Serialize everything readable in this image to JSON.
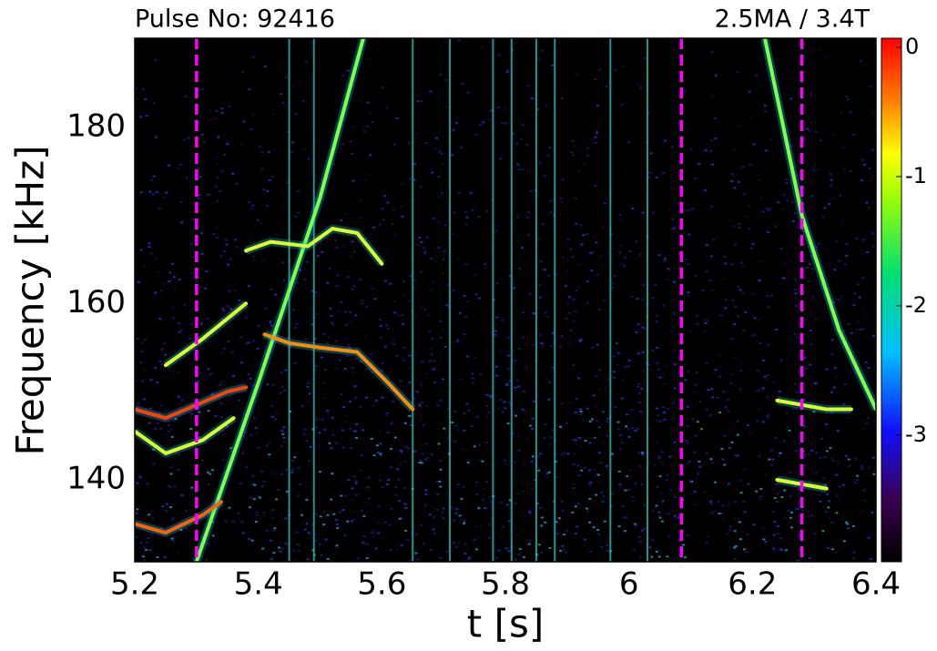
{
  "chart_data": {
    "type": "heatmap",
    "title": "Pulse No: 92416",
    "subtitle": "2.5MA / 3.4T",
    "x_label": "t [s]",
    "y_label": "Frequency [kHz]",
    "xlim": [
      5.2,
      6.4
    ],
    "xticks": [
      5.2,
      5.4,
      5.6,
      5.8,
      6.0,
      6.2,
      6.4
    ],
    "ylim": [
      130.7,
      190.1
    ],
    "yticks": [
      140,
      160,
      180
    ],
    "clim": [
      -3.98,
      0.07
    ],
    "cticks": [
      0,
      -1,
      -2,
      -3
    ],
    "vlines": [
      5.3,
      6.085,
      6.28
    ],
    "vline_color": "#ff00ff",
    "bursts": [
      5.45,
      5.49,
      5.65,
      5.71,
      5.78,
      5.81,
      5.85,
      5.88,
      5.97,
      6.03
    ],
    "burst_color": "#30c8c0",
    "series": [
      {
        "color": "#7fff40",
        "x": [
          5.3,
          5.4,
          5.5,
          5.57
        ],
        "values": [
          130.7,
          151,
          172,
          190.1
        ]
      },
      {
        "color": "#7fff40",
        "x": [
          6.22,
          6.28,
          6.34,
          6.4
        ],
        "values": [
          190.1,
          170,
          157,
          148
        ]
      },
      {
        "color": "#e0ff20",
        "x": [
          5.38,
          5.42,
          5.48,
          5.52,
          5.56,
          5.6
        ],
        "values": [
          166,
          167,
          166.5,
          168.5,
          168,
          164.5
        ]
      },
      {
        "color": "#ff8c00",
        "x": [
          5.41,
          5.45,
          5.5,
          5.56,
          5.61,
          5.65
        ],
        "values": [
          156.5,
          155.5,
          155,
          154.5,
          151,
          148
        ]
      },
      {
        "color": "#ff4000",
        "x": [
          5.2,
          5.25,
          5.3,
          5.35,
          5.38
        ],
        "values": [
          148,
          147,
          148.5,
          150,
          150.5
        ]
      },
      {
        "color": "#e0ff20",
        "x": [
          5.2,
          5.25,
          5.31,
          5.36
        ],
        "values": [
          145.5,
          143,
          144.5,
          147
        ]
      },
      {
        "color": "#ff6000",
        "x": [
          5.2,
          5.25,
          5.31,
          5.34
        ],
        "values": [
          135,
          134,
          136,
          137.5
        ]
      },
      {
        "color": "#e0ff20",
        "x": [
          5.25,
          5.31,
          5.38
        ],
        "values": [
          153,
          156,
          160
        ]
      },
      {
        "color": "#e0ff20",
        "x": [
          6.24,
          6.28,
          6.32,
          6.36
        ],
        "values": [
          149,
          148.5,
          148,
          148
        ]
      },
      {
        "color": "#e0ff20",
        "x": [
          6.24,
          6.28,
          6.32
        ],
        "values": [
          140,
          139.5,
          139
        ]
      }
    ]
  }
}
